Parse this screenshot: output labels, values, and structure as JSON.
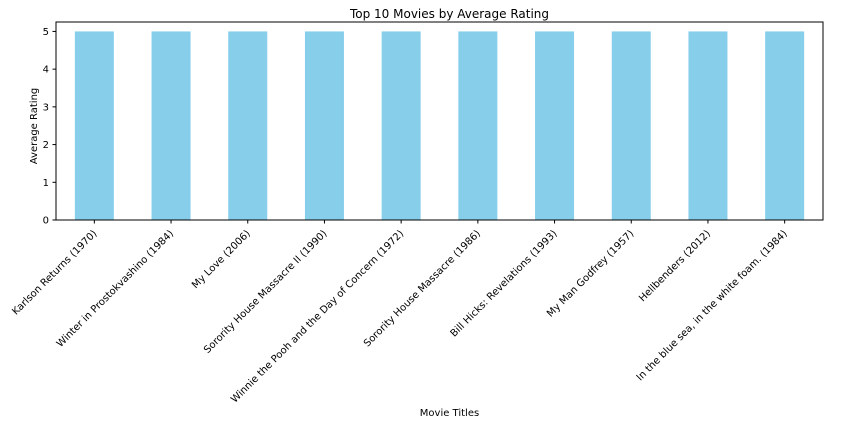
{
  "chart_data": {
    "type": "bar",
    "title": "Top 10 Movies by Average Rating",
    "xlabel": "Movie Titles",
    "ylabel": "Average Rating",
    "categories": [
      "Karlson Returns (1970)",
      "Winter in Prostokvashino (1984)",
      "My Love (2006)",
      "Sorority House Massacre II (1990)",
      "Winnie the Pooh and the Day of Concern (1972)",
      "Sorority House Massacre (1986)",
      "Bill Hicks: Revelations (1993)",
      "My Man Godfrey (1957)",
      "Hellbenders (2012)",
      "In the blue sea, in the white foam. (1984)"
    ],
    "values": [
      5,
      5,
      5,
      5,
      5,
      5,
      5,
      5,
      5,
      5
    ],
    "ylim": [
      0,
      5.25
    ],
    "yticks": [
      "0",
      "1",
      "2",
      "3",
      "4",
      "5"
    ],
    "grid": false,
    "legend": "none",
    "colors": {
      "bar": "#87ceeb",
      "axis": "#000000",
      "background": "#ffffff"
    }
  }
}
